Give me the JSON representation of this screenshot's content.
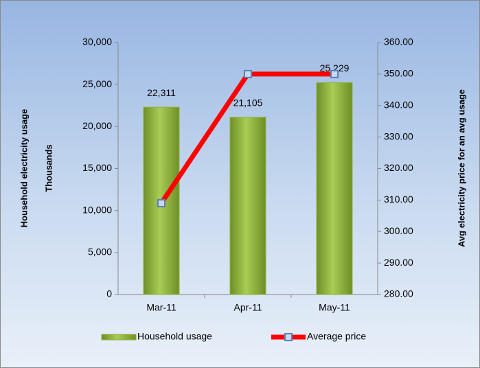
{
  "chart_data": {
    "type": "bar",
    "categories": [
      "Mar-11",
      "Apr-11",
      "May-11"
    ],
    "y_label": "Household electricity usage",
    "y_unit": "Thousands",
    "y2_label": "Avg electricity price for an avg usage",
    "series": [
      {
        "name": "Household usage",
        "type": "bar",
        "color": "#8db33a",
        "values": [
          22311,
          21105,
          25229
        ],
        "value_labels": [
          "22,311",
          "21,105",
          "25,229"
        ]
      },
      {
        "name": "Average price",
        "type": "line",
        "axis": "y2",
        "color": "#ff0000",
        "marker_color": "#5b80b5",
        "values": [
          309,
          350,
          350
        ]
      }
    ],
    "ylim": [
      0,
      30000
    ],
    "yticks": [
      0,
      {
        "value": 5000,
        "label": "5,000"
      },
      {
        "value": 10000,
        "label": "10,000"
      },
      {
        "value": 15000,
        "label": "15,000"
      },
      {
        "value": 20000,
        "label": "20,000"
      },
      {
        "value": 25000,
        "label": "25,000"
      },
      {
        "value": 30000,
        "label": "30,000"
      }
    ],
    "y2lim": [
      280,
      360
    ],
    "y2ticks": [
      {
        "value": 280,
        "label": "280.00"
      },
      {
        "value": 290,
        "label": "290.00"
      },
      {
        "value": 300,
        "label": "300.00"
      },
      {
        "value": 310,
        "label": "310.00"
      },
      {
        "value": 320,
        "label": "320.00"
      },
      {
        "value": 330,
        "label": "330.00"
      },
      {
        "value": 340,
        "label": "340.00"
      },
      {
        "value": 350,
        "label": "350.00"
      },
      {
        "value": 360,
        "label": "360.00"
      }
    ],
    "grid": false,
    "legend": "bottom"
  }
}
